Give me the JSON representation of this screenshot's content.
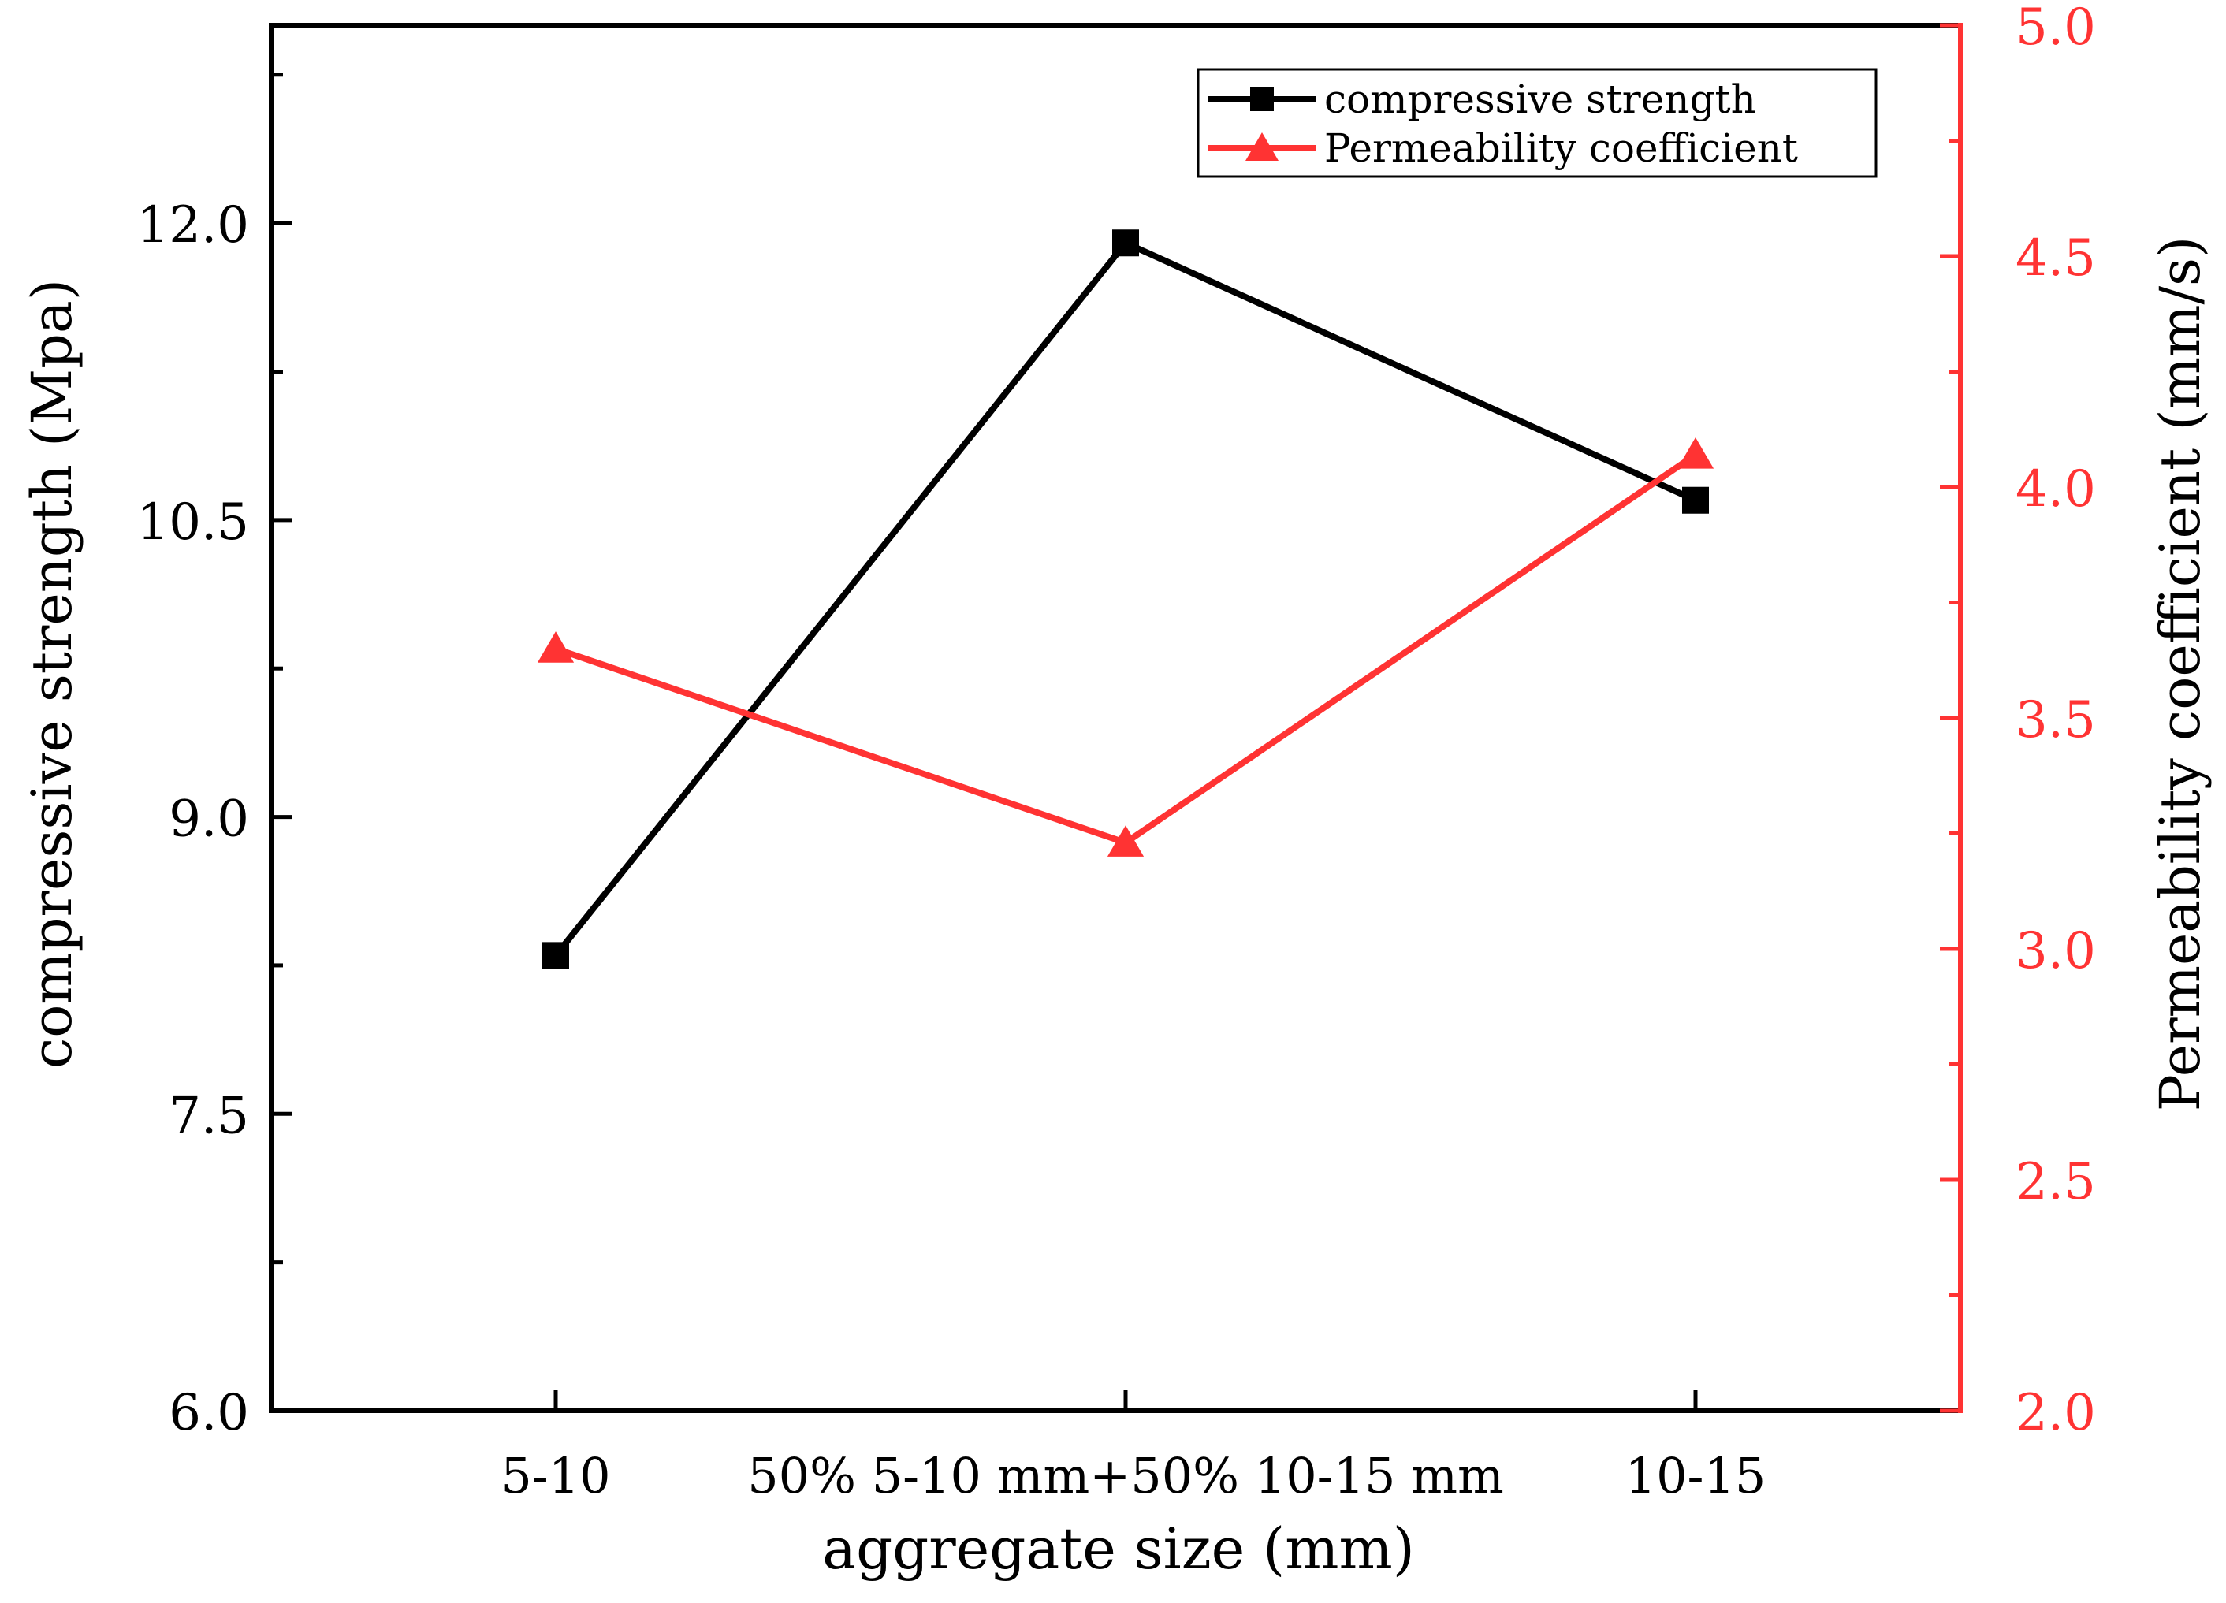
{
  "chart_data": {
    "type": "line",
    "categories": [
      "5-10",
      "50% 5-10 mm+50% 10-15 mm",
      "10-15"
    ],
    "xlabel": "aggregate size (mm)",
    "y_left": {
      "label": "compressive strength (Mpa)",
      "ylim": [
        6.0,
        13.0
      ],
      "ticks": [
        "6.0",
        "7.5",
        "9.0",
        "10.5",
        "12.0"
      ],
      "tick_values": [
        6.0,
        7.5,
        9.0,
        10.5,
        12.0
      ],
      "color": "#000000"
    },
    "y_right": {
      "label": "Permeability coefficient (mm/s)",
      "ylim": [
        2.0,
        5.0
      ],
      "ticks": [
        "2.0",
        "2.5",
        "3.0",
        "3.5",
        "4.0",
        "4.5",
        "5.0"
      ],
      "tick_values": [
        2.0,
        2.5,
        3.0,
        3.5,
        4.0,
        4.5,
        5.0
      ],
      "color": "#ff3333"
    },
    "series": [
      {
        "name": "compressive strength",
        "axis": "left",
        "marker": "square",
        "color": "#000000",
        "values": [
          8.3,
          11.9,
          10.6
        ]
      },
      {
        "name": "Permeability coefficient",
        "axis": "right",
        "marker": "triangle",
        "color": "#ff3333",
        "values": [
          3.65,
          3.23,
          4.07
        ]
      }
    ],
    "legend_position": "top-right",
    "grid": false
  }
}
